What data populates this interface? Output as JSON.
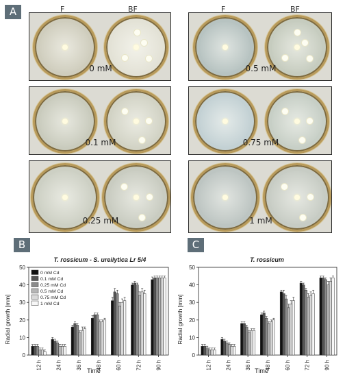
{
  "panel_a": {
    "tag": "A",
    "left_headers": {
      "f": "F",
      "bf": "BF"
    },
    "right_headers": {
      "f": "F",
      "bf": "BF"
    },
    "rows_left": [
      {
        "conc": "0 mM",
        "f_color": "#cfcdbd",
        "bf_color": "#e3e2d6",
        "bacteria": 4
      },
      {
        "conc": "0.1 mM",
        "f_color": "#c9cbbd",
        "bf_color": "#d2d3c5",
        "bacteria": 3
      },
      {
        "conc": "0.25 mM",
        "f_color": "#cdd0c4",
        "bf_color": "#c9ccc1",
        "bacteria": 3
      }
    ],
    "rows_right": [
      {
        "conc": "0.5 mM",
        "f_color": "#b7c3c1",
        "bf_color": "#c6ccbf",
        "bacteria": 4
      },
      {
        "conc": "0.75 mM",
        "f_color": "#c3d1d4",
        "bf_color": "#c7cfc6",
        "bacteria": 3
      },
      {
        "conc": "1 mM",
        "f_color": "#bdc5c2",
        "bf_color": "#c7ccc4",
        "bacteria": 3
      }
    ]
  },
  "panel_b": {
    "tag": "B"
  },
  "panel_c": {
    "tag": "C"
  },
  "chart_data": [
    {
      "type": "bar",
      "title": "T. rossicum - S. ureilytica Lr 5/4",
      "xlabel": "Time",
      "ylabel": "Radial growth [mm]",
      "ylim": [
        0,
        50
      ],
      "yticks": [
        0,
        10,
        20,
        30,
        40,
        50
      ],
      "grid": false,
      "legend_position": "top-left",
      "categories": [
        "12 h",
        "24 h",
        "36 h",
        "48 h",
        "60 h",
        "72 h",
        "90 h"
      ],
      "series": [
        {
          "name": "0 mM Cd",
          "color": "#111111",
          "values": [
            5,
            9,
            16,
            21,
            31,
            40,
            43
          ],
          "errors": [
            1,
            1,
            1,
            1.5,
            2,
            1,
            1.5
          ]
        },
        {
          "name": "0.1 mM Cd",
          "color": "#555555",
          "values": [
            5,
            8,
            18,
            23,
            36,
            41,
            44
          ],
          "errors": [
            1,
            1,
            1,
            1,
            2,
            1,
            1
          ]
        },
        {
          "name": "0.25 mM Cd",
          "color": "#8a8a8a",
          "values": [
            5,
            7,
            17,
            23,
            35,
            40,
            44
          ],
          "errors": [
            1,
            1,
            1,
            1,
            2,
            1,
            1
          ]
        },
        {
          "name": "0.5 mM Cd",
          "color": "#b5b5b5",
          "values": [
            3,
            5,
            13,
            19,
            28,
            34,
            44
          ],
          "errors": [
            1,
            1,
            1,
            1,
            2,
            2,
            1
          ]
        },
        {
          "name": "0.75 mM Cd",
          "color": "#d9d9d9",
          "values": [
            3,
            5,
            14,
            19,
            30,
            36,
            44
          ],
          "errors": [
            1,
            1,
            2,
            1,
            2,
            2,
            1
          ]
        },
        {
          "name": "1 mM Cd",
          "color": "#f7f7f7",
          "values": [
            2,
            5,
            15,
            20,
            31,
            35,
            44
          ],
          "errors": [
            1,
            1,
            1,
            1,
            2,
            2,
            1
          ]
        }
      ]
    },
    {
      "type": "bar",
      "title": "T. rossicum",
      "xlabel": "Time",
      "ylabel": "Radial growth [mm]",
      "ylim": [
        0,
        50
      ],
      "yticks": [
        0,
        10,
        20,
        30,
        40,
        50
      ],
      "grid": false,
      "categories": [
        "12 h",
        "24 h",
        "36 h",
        "48 h",
        "60 h",
        "72 h",
        "90 h"
      ],
      "series": [
        {
          "color": "#111111",
          "values": [
            5,
            9,
            18,
            23,
            36,
            41,
            44
          ],
          "errors": [
            1,
            1,
            1,
            1,
            1,
            1,
            1
          ]
        },
        {
          "color": "#555555",
          "values": [
            5,
            8,
            18,
            24,
            35,
            40,
            44
          ],
          "errors": [
            1,
            1,
            1,
            1,
            2,
            1,
            1
          ]
        },
        {
          "color": "#8a8a8a",
          "values": [
            4,
            7,
            16,
            21,
            32,
            37,
            43
          ],
          "errors": [
            1,
            1,
            1,
            1,
            2,
            1,
            1
          ]
        },
        {
          "color": "#b5b5b5",
          "values": [
            3,
            6,
            13,
            18,
            27,
            33,
            40
          ],
          "errors": [
            1,
            1,
            1,
            1,
            2,
            2,
            2
          ]
        },
        {
          "color": "#d9d9d9",
          "values": [
            3,
            5,
            14,
            19,
            29,
            34,
            42
          ],
          "errors": [
            1,
            1,
            1,
            1,
            2,
            2,
            2
          ]
        },
        {
          "color": "#f7f7f7",
          "values": [
            3,
            5,
            14,
            20,
            31,
            35,
            44
          ],
          "errors": [
            1,
            1,
            1,
            1,
            2,
            2,
            1
          ]
        }
      ]
    }
  ]
}
